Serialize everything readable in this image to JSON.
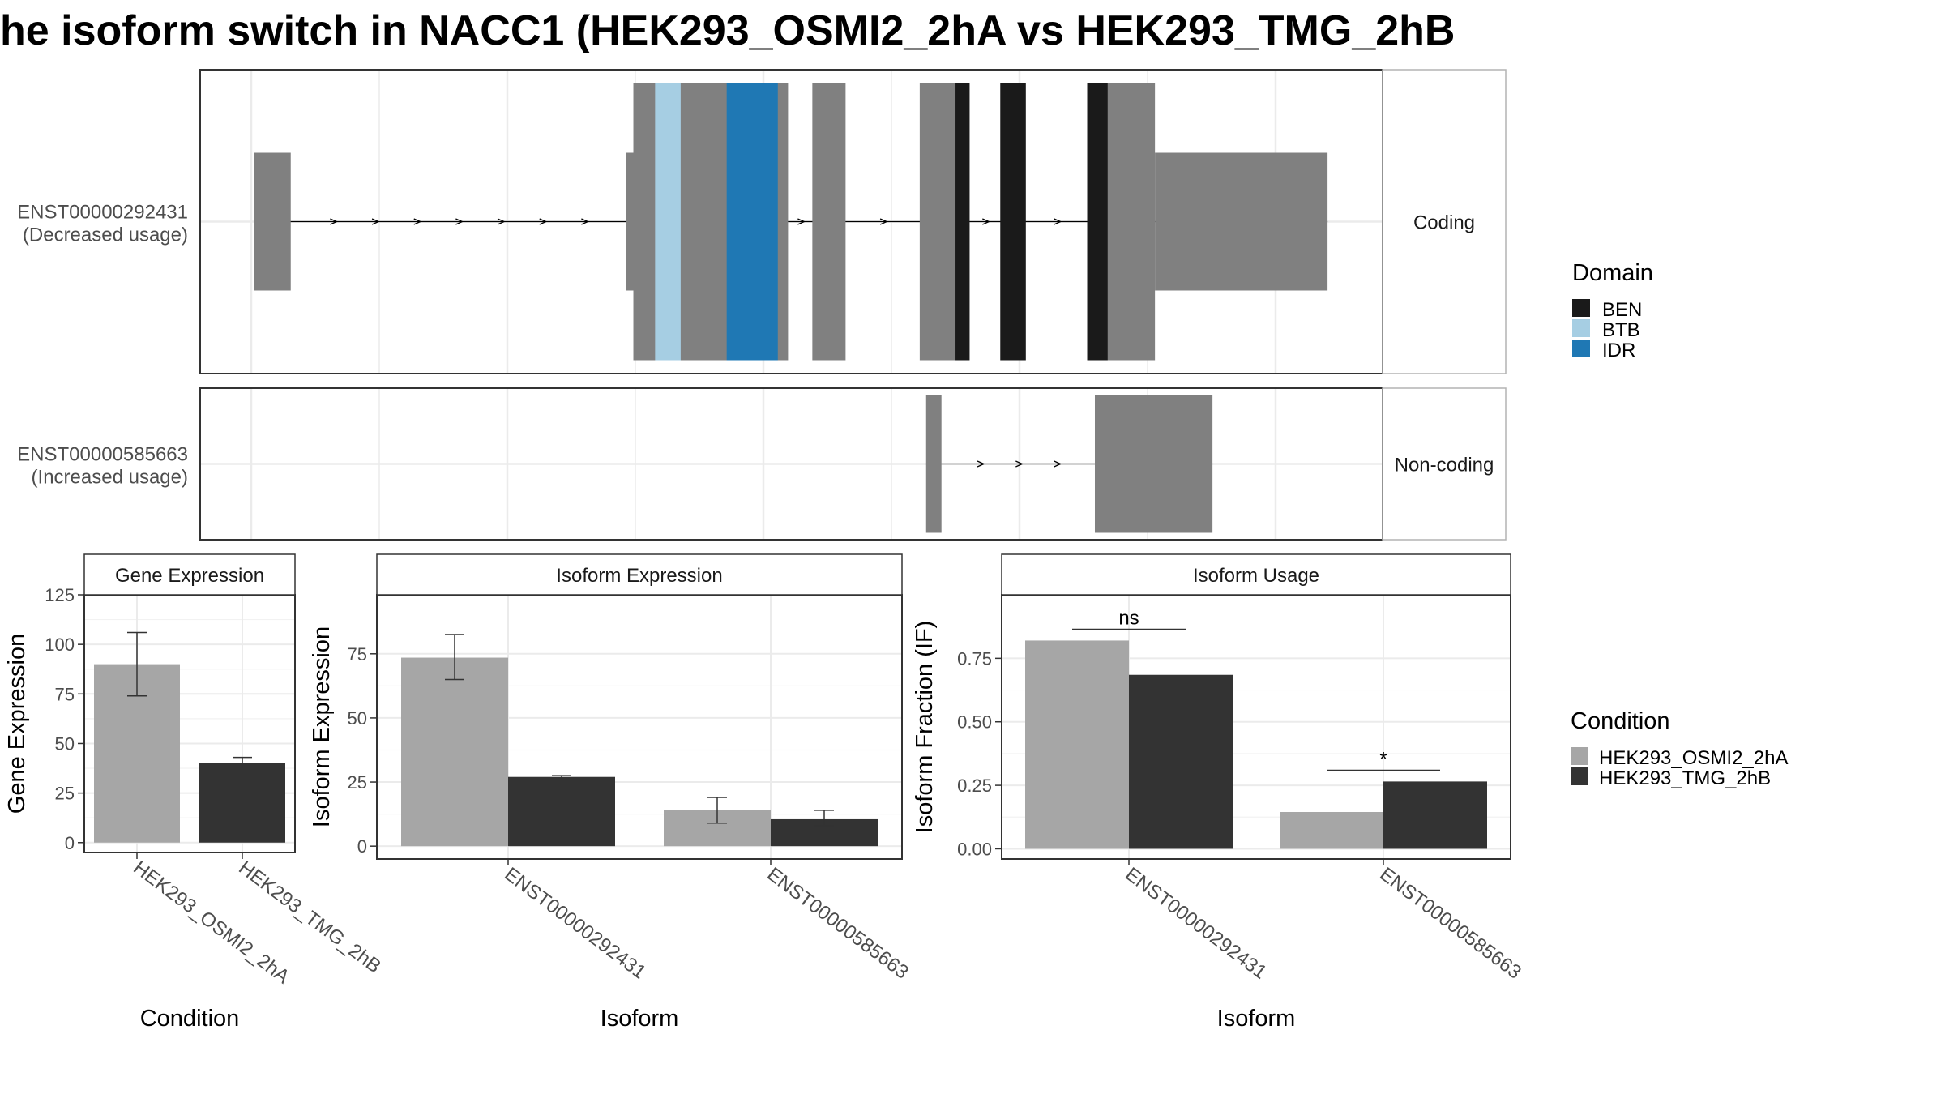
{
  "title": "he isoform switch in NACC1 (HEK293_OSMI2_2hA vs HEK293_TMG_2hB",
  "colors": {
    "exon": "#808080",
    "BEN": "#1a1a1a",
    "BTB": "#a6cee3",
    "IDR": "#1f78b4",
    "cond_a": "#a6a6a6",
    "cond_b": "#333333",
    "strip": "#ffffff",
    "grid": "#ebebeb"
  },
  "legend_domain": {
    "title": "Domain",
    "items": [
      {
        "label": "BEN",
        "color": "#1a1a1a"
      },
      {
        "label": "BTB",
        "color": "#a6cee3"
      },
      {
        "label": "IDR",
        "color": "#1f78b4"
      }
    ]
  },
  "legend_condition": {
    "title": "Condition",
    "items": [
      {
        "label": "HEK293_OSMI2_2hA",
        "color": "#a6a6a6"
      },
      {
        "label": "HEK293_TMG_2hB",
        "color": "#333333"
      }
    ]
  },
  "chart_data": [
    {
      "type": "gene-structure",
      "transcripts": [
        {
          "id": "ENST00000292431",
          "usage": "(Decreased usage)",
          "strip": "Coding",
          "segments": [
            {
              "start": 0.0,
              "end": 1.45,
              "kind": "utr"
            },
            {
              "start": 14.55,
              "end": 15.0,
              "kind": "utr"
            },
            {
              "start": 14.85,
              "end": 20.9,
              "kind": "cds"
            },
            {
              "start": 15.7,
              "end": 16.7,
              "kind": "BTB"
            },
            {
              "start": 18.5,
              "end": 20.5,
              "kind": "IDR"
            },
            {
              "start": 21.85,
              "end": 23.15,
              "kind": "cds"
            },
            {
              "start": 26.05,
              "end": 28.0,
              "kind": "cds"
            },
            {
              "start": 27.45,
              "end": 28.0,
              "kind": "BEN"
            },
            {
              "start": 29.2,
              "end": 30.2,
              "kind": "BEN"
            },
            {
              "start": 32.6,
              "end": 35.25,
              "kind": "cds"
            },
            {
              "start": 32.6,
              "end": 33.4,
              "kind": "BEN"
            },
            {
              "start": 35.25,
              "end": 42.0,
              "kind": "utr"
            }
          ]
        },
        {
          "id": "ENST00000585663",
          "usage": "(Increased usage)",
          "strip": "Non-coding",
          "segments": [
            {
              "start": 26.3,
              "end": 26.9,
              "kind": "utr"
            },
            {
              "start": 32.9,
              "end": 37.5,
              "kind": "utr"
            }
          ]
        }
      ]
    },
    {
      "type": "bar",
      "title": "Gene Expression",
      "xlabel": "Condition",
      "ylabel": "Gene Expression",
      "categories": [
        "HEK293_OSMI2_2hA",
        "HEK293_TMG_2hB"
      ],
      "values": [
        90,
        40
      ],
      "errors": [
        [
          74,
          106
        ],
        [
          37,
          43
        ]
      ],
      "ylim": [
        -5,
        125
      ],
      "yticks": [
        0,
        25,
        50,
        75,
        100,
        125
      ]
    },
    {
      "type": "bar",
      "title": "Isoform Expression",
      "xlabel": "Isoform",
      "ylabel": "Isoform Expression",
      "categories": [
        "ENST00000292431",
        "ENST00000585663"
      ],
      "series": [
        {
          "name": "HEK293_OSMI2_2hA",
          "values": [
            73.5,
            14
          ],
          "errors": [
            [
              65,
              82.5
            ],
            [
              9,
              19
            ]
          ]
        },
        {
          "name": "HEK293_TMG_2hB",
          "values": [
            27,
            10.5
          ],
          "errors": [
            [
              26.5,
              27.5
            ],
            [
              8,
              14
            ]
          ]
        }
      ],
      "ylim": [
        -5,
        98
      ],
      "yticks": [
        0,
        25,
        50,
        75
      ]
    },
    {
      "type": "bar",
      "title": "Isoform Usage",
      "xlabel": "Isoform",
      "ylabel": "Isoform Fraction (IF)",
      "categories": [
        "ENST00000292431",
        "ENST00000585663"
      ],
      "series": [
        {
          "name": "HEK293_OSMI2_2hA",
          "values": [
            0.82,
            0.145
          ]
        },
        {
          "name": "HEK293_TMG_2hB",
          "values": [
            0.685,
            0.265
          ]
        }
      ],
      "significance": [
        "ns",
        "*"
      ],
      "ylim": [
        -0.04,
        1.0
      ],
      "yticks": [
        0.0,
        0.25,
        0.5,
        0.75
      ],
      "yticklabels": [
        "0.00",
        "0.25",
        "0.50",
        "0.75"
      ]
    }
  ]
}
